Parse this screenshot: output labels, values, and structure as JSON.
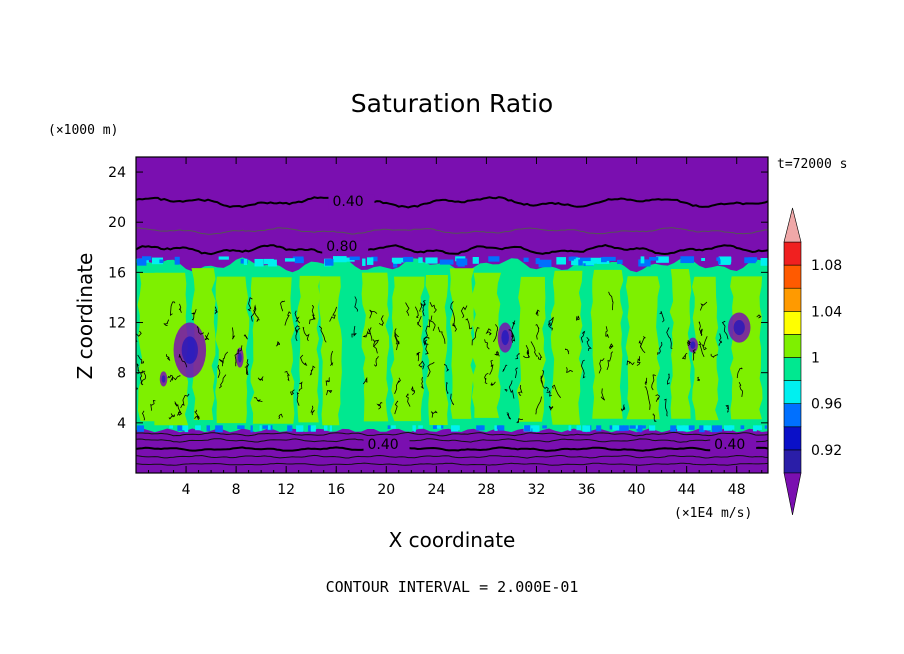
{
  "chart_data": {
    "type": "heatmap",
    "title": "Saturation Ratio",
    "xlabel": "X coordinate",
    "ylabel": "Z coordinate",
    "x_unit": "(×1E4 m/s)",
    "y_unit": "(×1000 m)",
    "time_label": "t=72000 s",
    "footer": "CONTOUR INTERVAL = 2.000E-01",
    "xlim": [
      0,
      50.5
    ],
    "ylim": [
      0,
      25.2
    ],
    "xticks": [
      4,
      8,
      12,
      16,
      20,
      24,
      28,
      32,
      36,
      40,
      44,
      48
    ],
    "yticks": [
      4,
      8,
      12,
      16,
      20,
      24
    ],
    "contour_labels": [
      {
        "text": "0.40",
        "x": 15.7,
        "y": 21.3
      },
      {
        "text": "0.80",
        "x": 15.2,
        "y": 17.7
      },
      {
        "text": "0.40",
        "x": 18.5,
        "y": 1.9
      },
      {
        "text": "0.40",
        "x": 46.2,
        "y": 1.9
      }
    ],
    "colorbar": {
      "levels": [
        {
          "range": "<0.90",
          "color": "#7a0fb0"
        },
        {
          "range": "0.90-0.92",
          "color": "#2a1ea8"
        },
        {
          "range": "0.92-0.94",
          "color": "#0a10c8"
        },
        {
          "range": "0.94-0.96",
          "color": "#0070ff"
        },
        {
          "range": "0.96-0.98",
          "color": "#00f0f0"
        },
        {
          "range": "0.98-1.00",
          "color": "#00e890"
        },
        {
          "range": "1.00-1.02",
          "color": "#7ef000"
        },
        {
          "range": "1.02-1.04",
          "color": "#ffff00"
        },
        {
          "range": "1.04-1.06",
          "color": "#ff9a00"
        },
        {
          "range": "1.06-1.08",
          "color": "#ff5a00"
        },
        {
          "range": "1.08-1.10",
          "color": "#f02020"
        },
        {
          "range": ">1.10",
          "color": "#f0a8a8"
        }
      ],
      "labels": [
        "0.92",
        "0.96",
        "1",
        "1.04",
        "1.08"
      ]
    }
  }
}
